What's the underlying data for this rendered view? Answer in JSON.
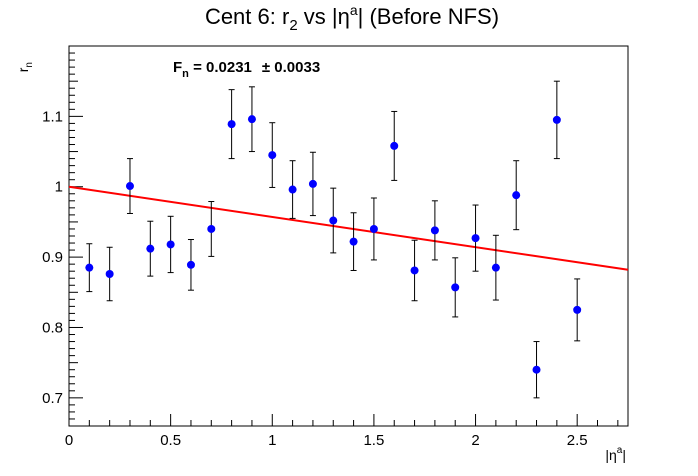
{
  "chart_data": {
    "type": "scatter",
    "title": {
      "prefix": "Cent 6: r",
      "sub": "2",
      "mid": " vs |η",
      "sup": "a",
      "suffix": "| (Before NFS)"
    },
    "xlabel": {
      "base": "|η",
      "sup": "a",
      "end": "|"
    },
    "ylabel": {
      "base": "r",
      "sub": "n"
    },
    "xlim": [
      0,
      2.75
    ],
    "ylim": [
      0.66,
      1.2
    ],
    "x_ticks": [
      0,
      0.5,
      1,
      1.5,
      2,
      2.5
    ],
    "x_tick_labels": [
      "0",
      "0.5",
      "1",
      "1.5",
      "2",
      "2.5"
    ],
    "y_ticks": [
      0.7,
      0.8,
      0.9,
      1.0,
      1.1
    ],
    "y_tick_labels": [
      "0.7",
      "0.8",
      "0.9",
      "1",
      "1.1"
    ],
    "grid": false,
    "annotation": {
      "label": "F",
      "sub": "n",
      "value": " = 0.0231",
      "error": "± 0.0033"
    },
    "series": [
      {
        "type": "scatter_errorbars",
        "color": "#0000ff",
        "points": [
          {
            "x": 0.1,
            "y": 0.885,
            "err": 0.034
          },
          {
            "x": 0.2,
            "y": 0.876,
            "err": 0.038
          },
          {
            "x": 0.3,
            "y": 1.001,
            "err": 0.039
          },
          {
            "x": 0.4,
            "y": 0.912,
            "err": 0.039
          },
          {
            "x": 0.5,
            "y": 0.918,
            "err": 0.04
          },
          {
            "x": 0.6,
            "y": 0.889,
            "err": 0.036
          },
          {
            "x": 0.7,
            "y": 0.94,
            "err": 0.039
          },
          {
            "x": 0.8,
            "y": 1.089,
            "err": 0.049
          },
          {
            "x": 0.9,
            "y": 1.096,
            "err": 0.046
          },
          {
            "x": 1.0,
            "y": 1.045,
            "err": 0.046
          },
          {
            "x": 1.1,
            "y": 0.996,
            "err": 0.041
          },
          {
            "x": 1.2,
            "y": 1.004,
            "err": 0.045
          },
          {
            "x": 1.3,
            "y": 0.952,
            "err": 0.046
          },
          {
            "x": 1.4,
            "y": 0.922,
            "err": 0.041
          },
          {
            "x": 1.5,
            "y": 0.94,
            "err": 0.044
          },
          {
            "x": 1.6,
            "y": 1.058,
            "err": 0.049
          },
          {
            "x": 1.7,
            "y": 0.881,
            "err": 0.043
          },
          {
            "x": 1.8,
            "y": 0.938,
            "err": 0.042
          },
          {
            "x": 1.9,
            "y": 0.857,
            "err": 0.042
          },
          {
            "x": 2.0,
            "y": 0.927,
            "err": 0.047
          },
          {
            "x": 2.1,
            "y": 0.885,
            "err": 0.046
          },
          {
            "x": 2.2,
            "y": 0.988,
            "err": 0.049
          },
          {
            "x": 2.3,
            "y": 0.74,
            "err": 0.04
          },
          {
            "x": 2.4,
            "y": 1.095,
            "err": 0.055
          },
          {
            "x": 2.5,
            "y": 0.825,
            "err": 0.044
          }
        ]
      },
      {
        "type": "fit_line",
        "color": "#ff0000",
        "x": [
          0,
          2.75
        ],
        "y": [
          1.0,
          0.882
        ]
      }
    ]
  }
}
